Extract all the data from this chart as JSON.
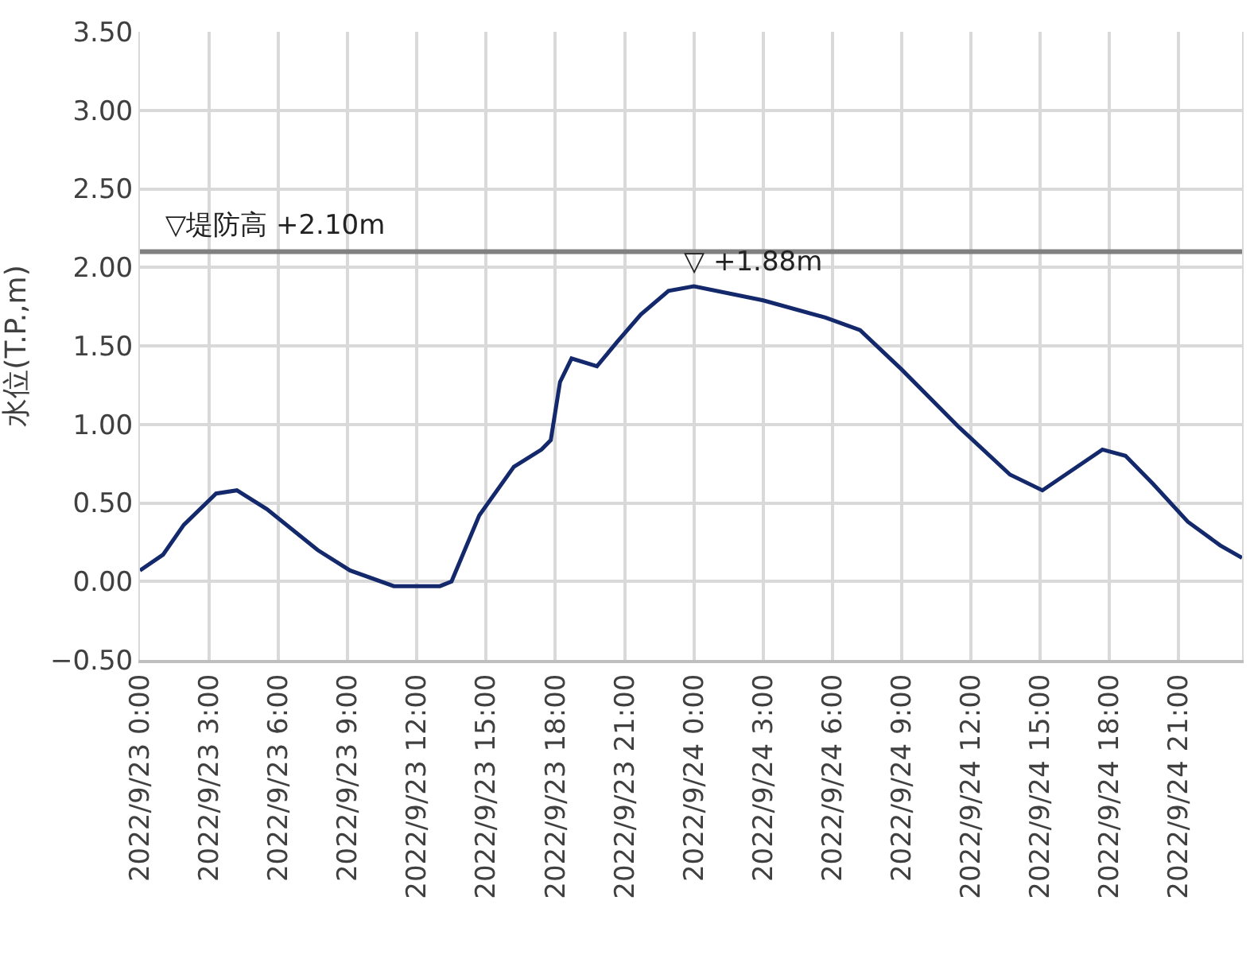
{
  "chart_data": {
    "type": "line",
    "ylabel": "水位(T.P.,m)",
    "x": [
      "2022-09-23T00:00",
      "2022-09-23T01:00",
      "2022-09-23T01:54",
      "2022-09-23T03:18",
      "2022-09-23T04:12",
      "2022-09-23T05:30",
      "2022-09-23T07:42",
      "2022-09-23T09:06",
      "2022-09-23T11:00",
      "2022-09-23T12:00",
      "2022-09-23T13:00",
      "2022-09-23T13:30",
      "2022-09-23T14:42",
      "2022-09-23T16:12",
      "2022-09-23T17:24",
      "2022-09-23T17:48",
      "2022-09-23T18:12",
      "2022-09-23T18:42",
      "2022-09-23T19:48",
      "2022-09-23T20:42",
      "2022-09-23T21:42",
      "2022-09-23T22:54",
      "2022-09-24T00:00",
      "2022-09-24T03:00",
      "2022-09-24T05:42",
      "2022-09-24T07:12",
      "2022-09-24T09:00",
      "2022-09-24T11:30",
      "2022-09-24T13:42",
      "2022-09-24T15:06",
      "2022-09-24T16:06",
      "2022-09-24T17:42",
      "2022-09-24T18:42",
      "2022-09-24T19:54",
      "2022-09-24T21:24",
      "2022-09-24T22:48",
      "2022-09-24T23:45"
    ],
    "series": [
      {
        "color": "#13296b",
        "values": [
          0.07,
          0.17,
          0.36,
          0.56,
          0.58,
          0.46,
          0.2,
          0.07,
          -0.03,
          -0.03,
          -0.03,
          0.0,
          0.42,
          0.73,
          0.84,
          0.9,
          1.27,
          1.42,
          1.37,
          1.53,
          1.7,
          1.85,
          1.88,
          1.79,
          1.68,
          1.6,
          1.35,
          0.98,
          0.68,
          0.58,
          0.68,
          0.84,
          0.8,
          0.62,
          0.38,
          0.23,
          0.15
        ]
      }
    ],
    "xlim": [
      "2022-09-23T00:00",
      "2022-09-24T23:45"
    ],
    "xticks": [
      {
        "value": "2022-09-23T00:00",
        "label": "2022/9/23 0:00"
      },
      {
        "value": "2022-09-23T03:00",
        "label": "2022/9/23 3:00"
      },
      {
        "value": "2022-09-23T06:00",
        "label": "2022/9/23 6:00"
      },
      {
        "value": "2022-09-23T09:00",
        "label": "2022/9/23 9:00"
      },
      {
        "value": "2022-09-23T12:00",
        "label": "2022/9/23 12:00"
      },
      {
        "value": "2022-09-23T15:00",
        "label": "2022/9/23 15:00"
      },
      {
        "value": "2022-09-23T18:00",
        "label": "2022/9/23 18:00"
      },
      {
        "value": "2022-09-23T21:00",
        "label": "2022/9/23 21:00"
      },
      {
        "value": "2022-09-24T00:00",
        "label": "2022/9/24 0:00"
      },
      {
        "value": "2022-09-24T03:00",
        "label": "2022/9/24 3:00"
      },
      {
        "value": "2022-09-24T06:00",
        "label": "2022/9/24 6:00"
      },
      {
        "value": "2022-09-24T09:00",
        "label": "2022/9/24 9:00"
      },
      {
        "value": "2022-09-24T12:00",
        "label": "2022/9/24 12:00"
      },
      {
        "value": "2022-09-24T15:00",
        "label": "2022/9/24 15:00"
      },
      {
        "value": "2022-09-24T18:00",
        "label": "2022/9/24 18:00"
      },
      {
        "value": "2022-09-24T21:00",
        "label": "2022/9/24 21:00"
      }
    ],
    "ylim": [
      -0.5,
      3.5
    ],
    "yticks": [
      {
        "value": -0.5,
        "label": "−0.50"
      },
      {
        "value": 0,
        "label": "0.00"
      },
      {
        "value": 0.5,
        "label": "0.50"
      },
      {
        "value": 1,
        "label": "1.00"
      },
      {
        "value": 1.5,
        "label": "1.50"
      },
      {
        "value": 2,
        "label": "2.00"
      },
      {
        "value": 2.5,
        "label": "2.50"
      },
      {
        "value": 3,
        "label": "3.00"
      },
      {
        "value": 3.5,
        "label": "3.50"
      }
    ],
    "ref_lines": [
      {
        "axis": "y",
        "value": 2.1,
        "label": "▽堤防高 +2.10m",
        "color": "#808080"
      }
    ],
    "annotations": [
      {
        "text": "▽ +1.88m",
        "x": "2022-09-24T00:00",
        "y": 1.88
      }
    ],
    "grid": true,
    "marker": "none",
    "line_style": "solid"
  }
}
